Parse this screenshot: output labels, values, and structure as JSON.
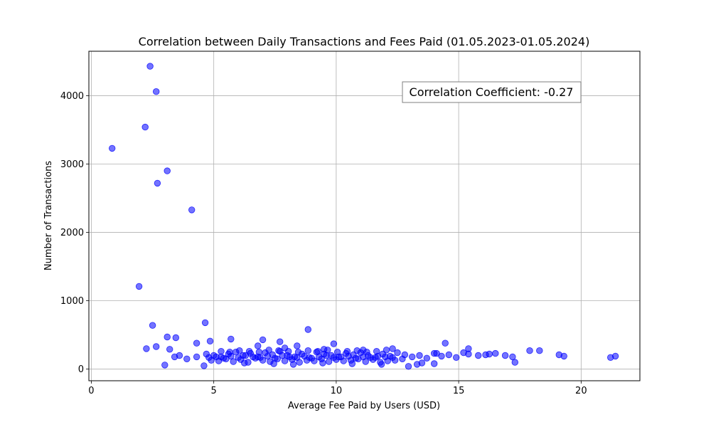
{
  "chart_data": {
    "type": "scatter",
    "title": "Correlation between Daily Transactions and Fees Paid (01.05.2023-01.05.2024)",
    "xlabel": "Average Fee Paid by Users (USD)",
    "ylabel": "Number of Transactions",
    "xlim": [
      -0.1,
      22.4
    ],
    "ylim": [
      -170,
      4650
    ],
    "xticks": [
      0,
      5,
      10,
      15,
      20
    ],
    "yticks": [
      0,
      1000,
      2000,
      3000,
      4000
    ],
    "xtick_labels": [
      "0",
      "5",
      "10",
      "15",
      "20"
    ],
    "ytick_labels": [
      "0",
      "1000",
      "2000",
      "3000",
      "4000"
    ],
    "grid": true,
    "annotation": "Correlation Coefficient: -0.27",
    "marker_color": "#0000ff",
    "marker_alpha": 0.55,
    "x": [
      2.4,
      2.65,
      2.2,
      0.85,
      3.1,
      2.7,
      4.1,
      1.95,
      4.65,
      2.5,
      8.85,
      2.25,
      3.1,
      3.45,
      3.2,
      2.65,
      4.3,
      4.85,
      5.7,
      7.0,
      7.7,
      6.8,
      9.9,
      14.45,
      15.4,
      17.9,
      18.3,
      19.3,
      19.1,
      21.2,
      21.4,
      3.0,
      4.6,
      12.95,
      13.3,
      13.5,
      14.0,
      17.3,
      3.4,
      3.6,
      3.9,
      4.3,
      4.7,
      5.0,
      5.3,
      5.6,
      5.9,
      6.2,
      6.5,
      6.8,
      7.1,
      7.4,
      7.7,
      8.0,
      8.3,
      8.6,
      8.9,
      9.2,
      9.5,
      9.8,
      10.1,
      10.4,
      10.7,
      11.0,
      11.3,
      11.6,
      11.9,
      12.2,
      12.5,
      12.8,
      13.1,
      13.4,
      13.7,
      14.0,
      14.3,
      14.6,
      14.9,
      15.4,
      15.8,
      16.1,
      16.5,
      16.9,
      17.2,
      4.9,
      5.2,
      5.5,
      5.8,
      6.1,
      6.4,
      6.7,
      7.0,
      7.3,
      7.6,
      7.9,
      8.2,
      8.5,
      8.8,
      9.1,
      9.4,
      9.7,
      10.0,
      10.3,
      10.6,
      10.9,
      11.2,
      11.5,
      11.8,
      12.1,
      12.4,
      12.7,
      4.8,
      5.1,
      5.4,
      5.7,
      6.0,
      6.3,
      6.6,
      6.9,
      7.2,
      7.5,
      7.8,
      8.1,
      8.4,
      8.7,
      9.0,
      9.3,
      9.6,
      9.9,
      10.2,
      10.5,
      10.8,
      11.1,
      11.4,
      11.7,
      12.0,
      12.3,
      5.3,
      5.65,
      6.05,
      6.45,
      6.85,
      7.25,
      7.65,
      8.05,
      8.45,
      8.85,
      9.25,
      9.65,
      10.05,
      10.45,
      10.85,
      11.25,
      11.65,
      12.05,
      6.25,
      7.45,
      8.25,
      9.45,
      10.65,
      11.85,
      14.1,
      15.2,
      16.25,
      12.3,
      11.1,
      7.9,
      9.5,
      8.4
    ],
    "y": [
      4430,
      4060,
      3540,
      3230,
      2900,
      2720,
      2330,
      1210,
      680,
      640,
      580,
      300,
      470,
      460,
      290,
      330,
      380,
      410,
      440,
      430,
      400,
      340,
      370,
      380,
      300,
      270,
      270,
      190,
      210,
      170,
      190,
      60,
      50,
      40,
      70,
      90,
      80,
      100,
      180,
      200,
      150,
      180,
      220,
      200,
      180,
      220,
      250,
      200,
      230,
      180,
      240,
      210,
      260,
      200,
      180,
      220,
      170,
      250,
      220,
      200,
      180,
      230,
      210,
      240,
      200,
      170,
      220,
      190,
      240,
      210,
      180,
      200,
      160,
      230,
      190,
      210,
      170,
      220,
      200,
      210,
      230,
      200,
      180,
      130,
      120,
      150,
      110,
      140,
      100,
      160,
      130,
      110,
      150,
      120,
      140,
      100,
      130,
      120,
      150,
      110,
      140,
      120,
      130,
      150,
      110,
      140,
      100,
      120,
      130,
      150,
      170,
      180,
      160,
      190,
      170,
      200,
      180,
      170,
      190,
      160,
      200,
      180,
      170,
      190,
      160,
      180,
      200,
      170,
      180,
      190,
      160,
      180,
      170,
      190,
      180,
      170,
      260,
      250,
      270,
      260,
      250,
      280,
      270,
      260,
      250,
      270,
      260,
      280,
      250,
      260,
      270,
      250,
      260,
      280,
      90,
      80,
      70,
      90,
      80,
      70,
      230,
      240,
      220,
      300,
      280,
      310,
      290,
      340
    ]
  }
}
